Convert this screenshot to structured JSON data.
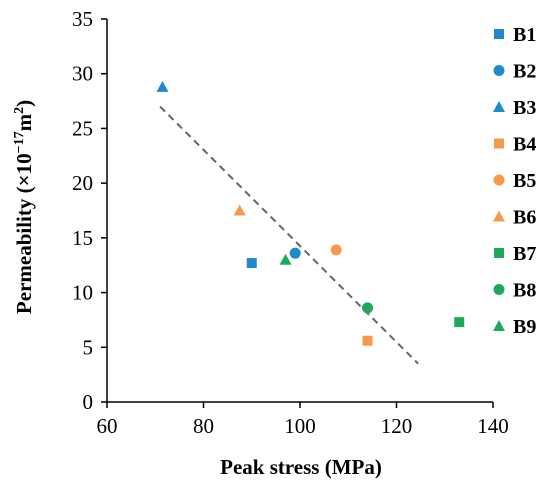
{
  "chart_data": {
    "type": "scatter",
    "xlabel": "Peak stress (MPa)",
    "ylabel": {
      "main": "Permeability (×10",
      "exp": "−17",
      "unit": "m",
      "unit_exp": "2",
      "close": ")"
    },
    "xlim": [
      60,
      140
    ],
    "ylim": [
      0,
      35
    ],
    "x_ticks": [
      "60",
      "80",
      "100",
      "120",
      "140"
    ],
    "y_ticks": [
      "0",
      "5",
      "10",
      "15",
      "20",
      "25",
      "30",
      "35"
    ],
    "grid": false,
    "legend_position": "right",
    "series": [
      {
        "name": "B1",
        "marker": "square",
        "color": "#1f8ac9",
        "points": [
          [
            90,
            12.7
          ]
        ]
      },
      {
        "name": "B2",
        "marker": "circle",
        "color": "#1f8ac9",
        "points": [
          [
            99,
            13.6
          ]
        ]
      },
      {
        "name": "B3",
        "marker": "triangle",
        "color": "#1f8ac9",
        "points": [
          [
            71.5,
            28.8
          ]
        ]
      },
      {
        "name": "B4",
        "marker": "square",
        "color": "#f7994a",
        "points": [
          [
            114,
            5.6
          ]
        ]
      },
      {
        "name": "B5",
        "marker": "circle",
        "color": "#f7994a",
        "points": [
          [
            107.5,
            13.9
          ]
        ]
      },
      {
        "name": "B6",
        "marker": "triangle",
        "color": "#f7994a",
        "points": [
          [
            87.5,
            17.5
          ]
        ]
      },
      {
        "name": "B7",
        "marker": "square",
        "color": "#1fa85a",
        "points": [
          [
            133,
            7.3
          ]
        ]
      },
      {
        "name": "B8",
        "marker": "circle",
        "color": "#1fa85a",
        "points": [
          [
            114,
            8.6
          ]
        ]
      },
      {
        "name": "B9",
        "marker": "triangle",
        "color": "#1fa85a",
        "points": [
          [
            97,
            13.0
          ]
        ]
      }
    ],
    "trendline": {
      "style": "dashed",
      "color": "#666666",
      "points": [
        [
          71,
          27.0
        ],
        [
          124.5,
          3.5
        ]
      ]
    }
  }
}
